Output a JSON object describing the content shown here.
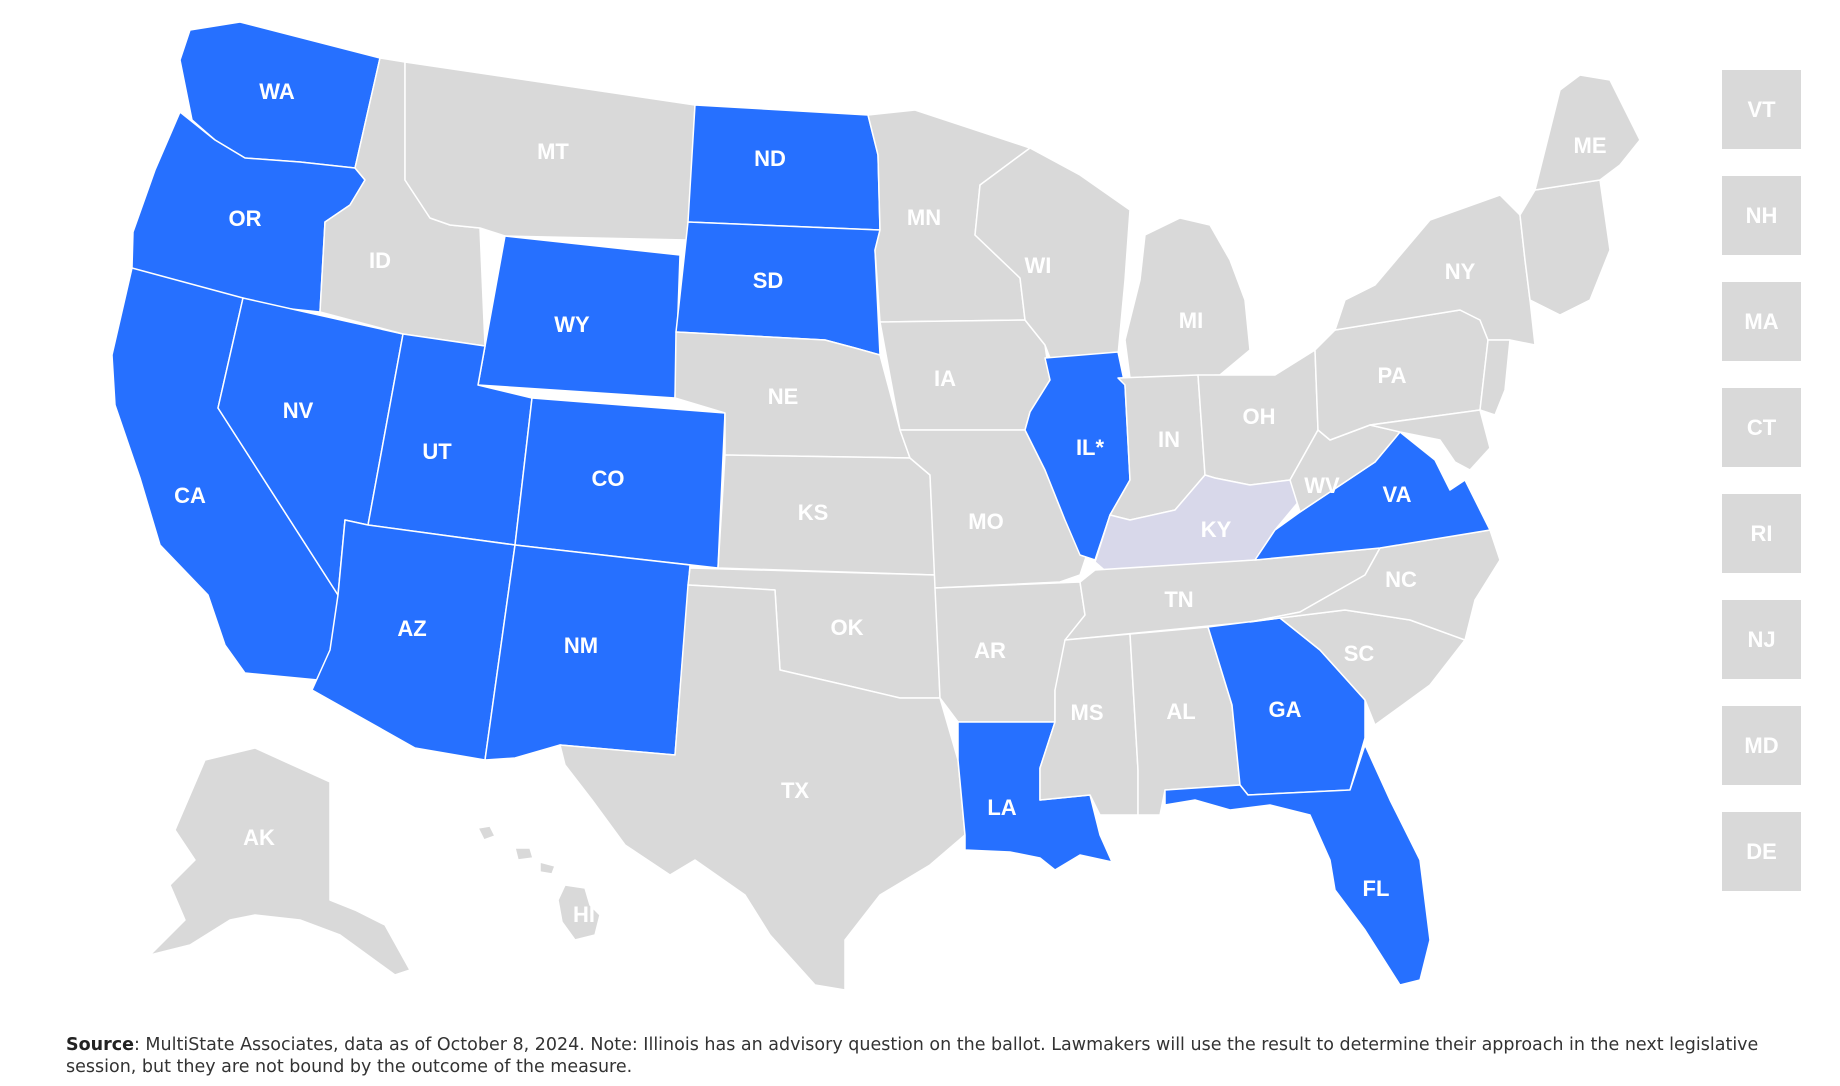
{
  "colors": {
    "highlight": "#2670ff",
    "base": "#d9d9d9",
    "kentucky": "#d8d8ea"
  },
  "states": [
    {
      "code": "WA",
      "label": "WA",
      "status": "highlight"
    },
    {
      "code": "OR",
      "label": "OR",
      "status": "highlight"
    },
    {
      "code": "CA",
      "label": "CA",
      "status": "highlight"
    },
    {
      "code": "NV",
      "label": "NV",
      "status": "highlight"
    },
    {
      "code": "ID",
      "label": "ID",
      "status": "base"
    },
    {
      "code": "MT",
      "label": "MT",
      "status": "base"
    },
    {
      "code": "WY",
      "label": "WY",
      "status": "highlight"
    },
    {
      "code": "UT",
      "label": "UT",
      "status": "highlight"
    },
    {
      "code": "CO",
      "label": "CO",
      "status": "highlight"
    },
    {
      "code": "AZ",
      "label": "AZ",
      "status": "highlight"
    },
    {
      "code": "NM",
      "label": "NM",
      "status": "highlight"
    },
    {
      "code": "ND",
      "label": "ND",
      "status": "highlight"
    },
    {
      "code": "SD",
      "label": "SD",
      "status": "highlight"
    },
    {
      "code": "NE",
      "label": "NE",
      "status": "base"
    },
    {
      "code": "KS",
      "label": "KS",
      "status": "base"
    },
    {
      "code": "OK",
      "label": "OK",
      "status": "base"
    },
    {
      "code": "TX",
      "label": "TX",
      "status": "base"
    },
    {
      "code": "MN",
      "label": "MN",
      "status": "base"
    },
    {
      "code": "IA",
      "label": "IA",
      "status": "base"
    },
    {
      "code": "MO",
      "label": "MO",
      "status": "base"
    },
    {
      "code": "AR",
      "label": "AR",
      "status": "base"
    },
    {
      "code": "LA",
      "label": "LA",
      "status": "highlight"
    },
    {
      "code": "WI",
      "label": "WI",
      "status": "base"
    },
    {
      "code": "IL",
      "label": "IL*",
      "status": "highlight"
    },
    {
      "code": "MI",
      "label": "MI",
      "status": "base"
    },
    {
      "code": "IN",
      "label": "IN",
      "status": "base"
    },
    {
      "code": "OH",
      "label": "OH",
      "status": "base"
    },
    {
      "code": "KY",
      "label": "KY",
      "status": "kentucky"
    },
    {
      "code": "TN",
      "label": "TN",
      "status": "base"
    },
    {
      "code": "MS",
      "label": "MS",
      "status": "base"
    },
    {
      "code": "AL",
      "label": "AL",
      "status": "base"
    },
    {
      "code": "GA",
      "label": "GA",
      "status": "highlight"
    },
    {
      "code": "FL",
      "label": "FL",
      "status": "highlight"
    },
    {
      "code": "SC",
      "label": "SC",
      "status": "base"
    },
    {
      "code": "NC",
      "label": "NC",
      "status": "base"
    },
    {
      "code": "VA",
      "label": "VA",
      "status": "highlight"
    },
    {
      "code": "WV",
      "label": "WV",
      "status": "base"
    },
    {
      "code": "PA",
      "label": "PA",
      "status": "base"
    },
    {
      "code": "NY",
      "label": "NY",
      "status": "base"
    },
    {
      "code": "ME",
      "label": "ME",
      "status": "base"
    },
    {
      "code": "AK",
      "label": "AK",
      "status": "base"
    },
    {
      "code": "HI",
      "label": "HI",
      "status": "base"
    }
  ],
  "northeast_boxes": [
    {
      "code": "VT",
      "label": "VT",
      "status": "base"
    },
    {
      "code": "NH",
      "label": "NH",
      "status": "base"
    },
    {
      "code": "MA",
      "label": "MA",
      "status": "base"
    },
    {
      "code": "CT",
      "label": "CT",
      "status": "base"
    },
    {
      "code": "RI",
      "label": "RI",
      "status": "base"
    },
    {
      "code": "NJ",
      "label": "NJ",
      "status": "base"
    },
    {
      "code": "MD",
      "label": "MD",
      "status": "base"
    },
    {
      "code": "DE",
      "label": "DE",
      "status": "base"
    }
  ],
  "footnote": {
    "source_label": "Source",
    "text": ": MultiState Associates, data as of October 8, 2024. Note: Illinois has an advisory question on the ballot. Lawmakers will use the result to determine their approach in the next legislative session, but they are not bound by the outcome of the measure."
  }
}
